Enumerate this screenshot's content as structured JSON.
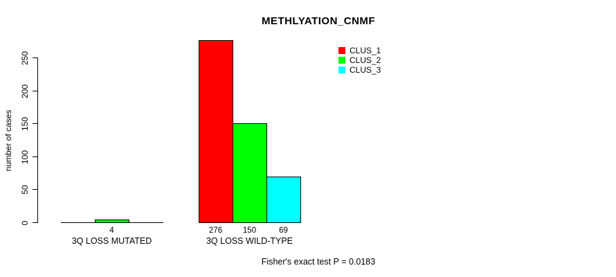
{
  "page": {
    "background": "#ffffff"
  },
  "chart_data": {
    "type": "bar",
    "title": "METHLYATION_CNMF",
    "ylabel": "number of cases",
    "xlabel": "",
    "ylim": [
      0,
      250
    ],
    "yticks": [
      0,
      50,
      100,
      150,
      200,
      250
    ],
    "categories": [
      "3Q LOSS MUTATED",
      "3Q LOSS WILD-TYPE"
    ],
    "series": [
      {
        "name": "CLUS_1",
        "color": "#ff0000",
        "values": [
          0,
          276
        ]
      },
      {
        "name": "CLUS_2",
        "color": "#00ff00",
        "values": [
          4,
          150
        ]
      },
      {
        "name": "CLUS_3",
        "color": "#00ffff",
        "values": [
          0,
          69
        ]
      }
    ],
    "bar_value_labels": [
      [
        "",
        "4",
        ""
      ],
      [
        "276",
        "150",
        "69"
      ]
    ],
    "legend": {
      "position": "top-right",
      "entries": [
        {
          "label": "CLUS_1",
          "color": "#ff0000"
        },
        {
          "label": "CLUS_2",
          "color": "#00ff00"
        },
        {
          "label": "CLUS_3",
          "color": "#00ffff"
        }
      ]
    },
    "annotation": "Fisher's exact test P = 0.0183",
    "grid": false,
    "axis_color": "#000000"
  }
}
